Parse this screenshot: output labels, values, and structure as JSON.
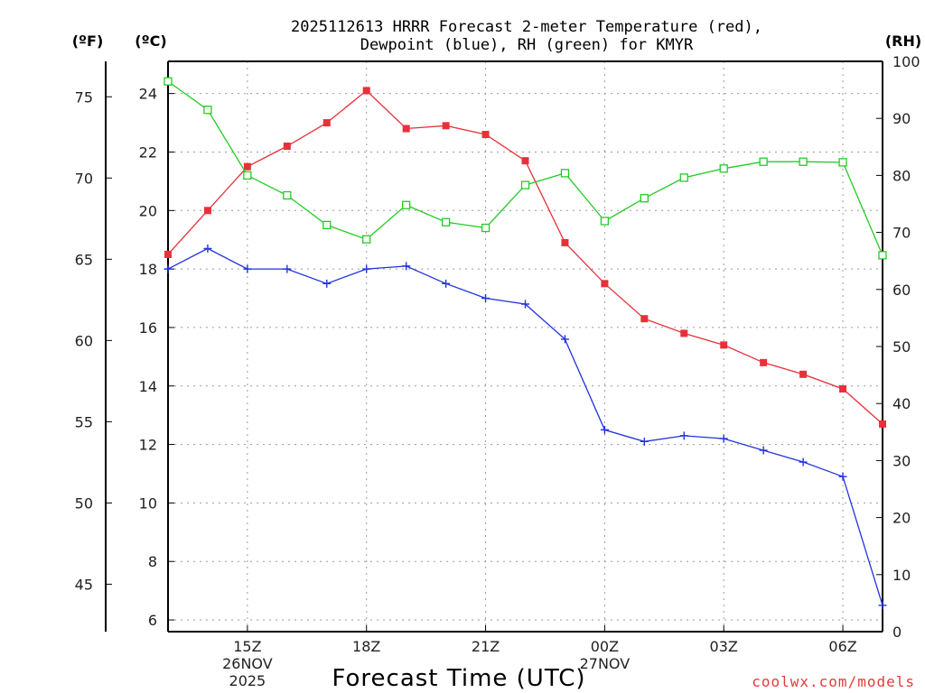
{
  "chart_data": {
    "type": "line",
    "title_lines": [
      "2025112613 HRRR Forecast 2-meter Temperature (red),",
      "Dewpoint (blue), RH (green) for KMYR"
    ],
    "units": {
      "fahrenheit": "(ºF)",
      "celsius": "(ºC)",
      "rh": "(RH)"
    },
    "xlabel": "Forecast Time (UTC)",
    "credit": "coolwx.com/models",
    "x_hours": [
      13,
      14,
      15,
      16,
      17,
      18,
      19,
      20,
      21,
      22,
      23,
      24,
      25,
      26,
      27,
      28,
      29,
      30,
      31
    ],
    "xlim": [
      13,
      31
    ],
    "x_ticks": [
      {
        "hour": 15,
        "lines": [
          "15Z",
          "26NOV",
          "2025"
        ]
      },
      {
        "hour": 18,
        "lines": [
          "18Z"
        ]
      },
      {
        "hour": 21,
        "lines": [
          "21Z"
        ]
      },
      {
        "hour": 24,
        "lines": [
          "00Z",
          "27NOV"
        ]
      },
      {
        "hour": 27,
        "lines": [
          "03Z"
        ]
      },
      {
        "hour": 30,
        "lines": [
          "06Z"
        ]
      }
    ],
    "celsius_axis": {
      "ylim": [
        5.6,
        25.1
      ],
      "ticks": [
        6,
        8,
        10,
        12,
        14,
        16,
        18,
        20,
        22,
        24
      ]
    },
    "fahrenheit_axis": {
      "ticks": [
        45,
        50,
        55,
        60,
        65,
        70,
        75
      ]
    },
    "rh_axis": {
      "ylim": [
        0,
        100
      ],
      "ticks": [
        0,
        10,
        20,
        30,
        40,
        50,
        60,
        70,
        80,
        90,
        100
      ]
    },
    "series": [
      {
        "name": "2-meter Temperature",
        "axis": "celsius",
        "color": "#e8303a",
        "marker": "filled-square",
        "values": [
          18.5,
          20.0,
          21.5,
          22.2,
          23.0,
          24.1,
          22.8,
          22.9,
          22.6,
          21.7,
          18.9,
          17.5,
          16.3,
          15.8,
          15.4,
          14.8,
          14.4,
          13.9,
          12.7
        ]
      },
      {
        "name": "Dewpoint",
        "axis": "celsius",
        "color": "#2233dd",
        "marker": "plus",
        "values": [
          18.0,
          18.7,
          18.0,
          18.0,
          17.5,
          18.0,
          18.1,
          17.5,
          17.0,
          16.8,
          15.6,
          12.5,
          12.1,
          12.3,
          12.2,
          11.8,
          11.4,
          10.9,
          6.5
        ]
      },
      {
        "name": "RH",
        "axis": "rh",
        "color": "#22cc22",
        "marker": "open-square",
        "values": [
          96.5,
          91.5,
          80.0,
          76.5,
          71.3,
          68.8,
          74.8,
          71.8,
          70.8,
          78.3,
          80.4,
          72.0,
          76.0,
          79.6,
          81.2,
          82.4,
          82.4,
          82.3,
          66.0
        ]
      }
    ]
  }
}
